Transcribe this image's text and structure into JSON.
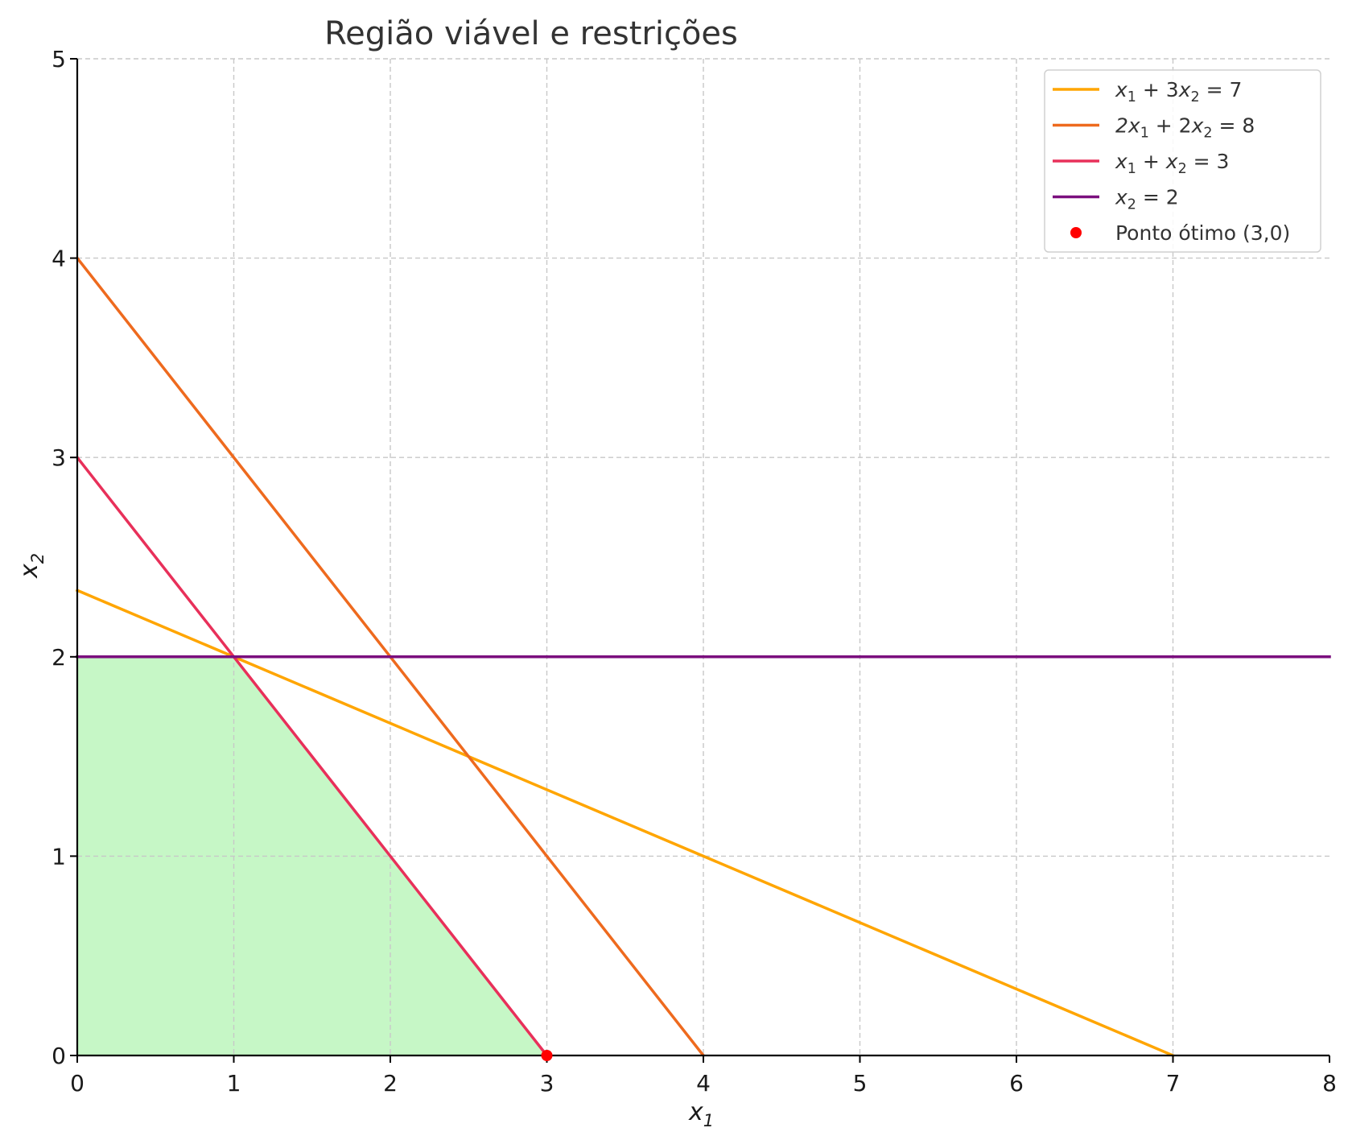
{
  "chart_data": {
    "type": "line",
    "title": "Região viável e restrições",
    "xlabel": "x1",
    "ylabel": "x2",
    "xlim": [
      0,
      8
    ],
    "ylim": [
      0,
      5
    ],
    "xticks": [
      "0",
      "1",
      "2",
      "3",
      "4",
      "5",
      "6",
      "7",
      "8"
    ],
    "yticks": [
      "0",
      "1",
      "2",
      "3",
      "4",
      "5"
    ],
    "grid": true,
    "grid_style": "dashed",
    "legend_position": "top-right",
    "series": [
      {
        "name": "x1 + 3x2 = 7",
        "color": "#FFA500",
        "points": [
          [
            0,
            2.3333
          ],
          [
            7,
            0
          ]
        ]
      },
      {
        "name": "2x1 + 2x2 = 8",
        "color": "#EE6A1E",
        "points": [
          [
            0,
            4
          ],
          [
            4,
            0
          ]
        ]
      },
      {
        "name": "x1 + x2 = 3",
        "color": "#E8305A",
        "points": [
          [
            0,
            3
          ],
          [
            3,
            0
          ]
        ]
      },
      {
        "name": "x2 = 2",
        "color": "#7B0F7E",
        "points": [
          [
            0,
            2
          ],
          [
            8,
            2
          ]
        ]
      }
    ],
    "feasible_region": {
      "color": "#C6F7C6",
      "vertices": [
        [
          0,
          0
        ],
        [
          0,
          2
        ],
        [
          1,
          2
        ],
        [
          3,
          0
        ]
      ]
    },
    "optimal_point": {
      "name": "Ponto ótimo (3,0)",
      "color": "#FF0000",
      "x": 3,
      "y": 0
    }
  },
  "legend": {
    "items": [
      {
        "parts": [
          [
            "x",
            "1",
            " + 3"
          ],
          [
            "x",
            "2",
            " = 7"
          ]
        ],
        "color": "#FFA500",
        "kind": "line"
      },
      {
        "parts": [
          [
            "2x",
            "1",
            " + 2"
          ],
          [
            "x",
            "2",
            " = 8"
          ]
        ],
        "color": "#EE6A1E",
        "kind": "line"
      },
      {
        "parts": [
          [
            "x",
            "1",
            " + "
          ],
          [
            "x",
            "2",
            " = 3"
          ]
        ],
        "color": "#E8305A",
        "kind": "line"
      },
      {
        "parts": [
          [
            "x",
            "2",
            " = 2"
          ]
        ],
        "color": "#7B0F7E",
        "kind": "line"
      },
      {
        "text": "Ponto ótimo (3,0)",
        "color": "#FF0000",
        "kind": "marker"
      }
    ]
  }
}
